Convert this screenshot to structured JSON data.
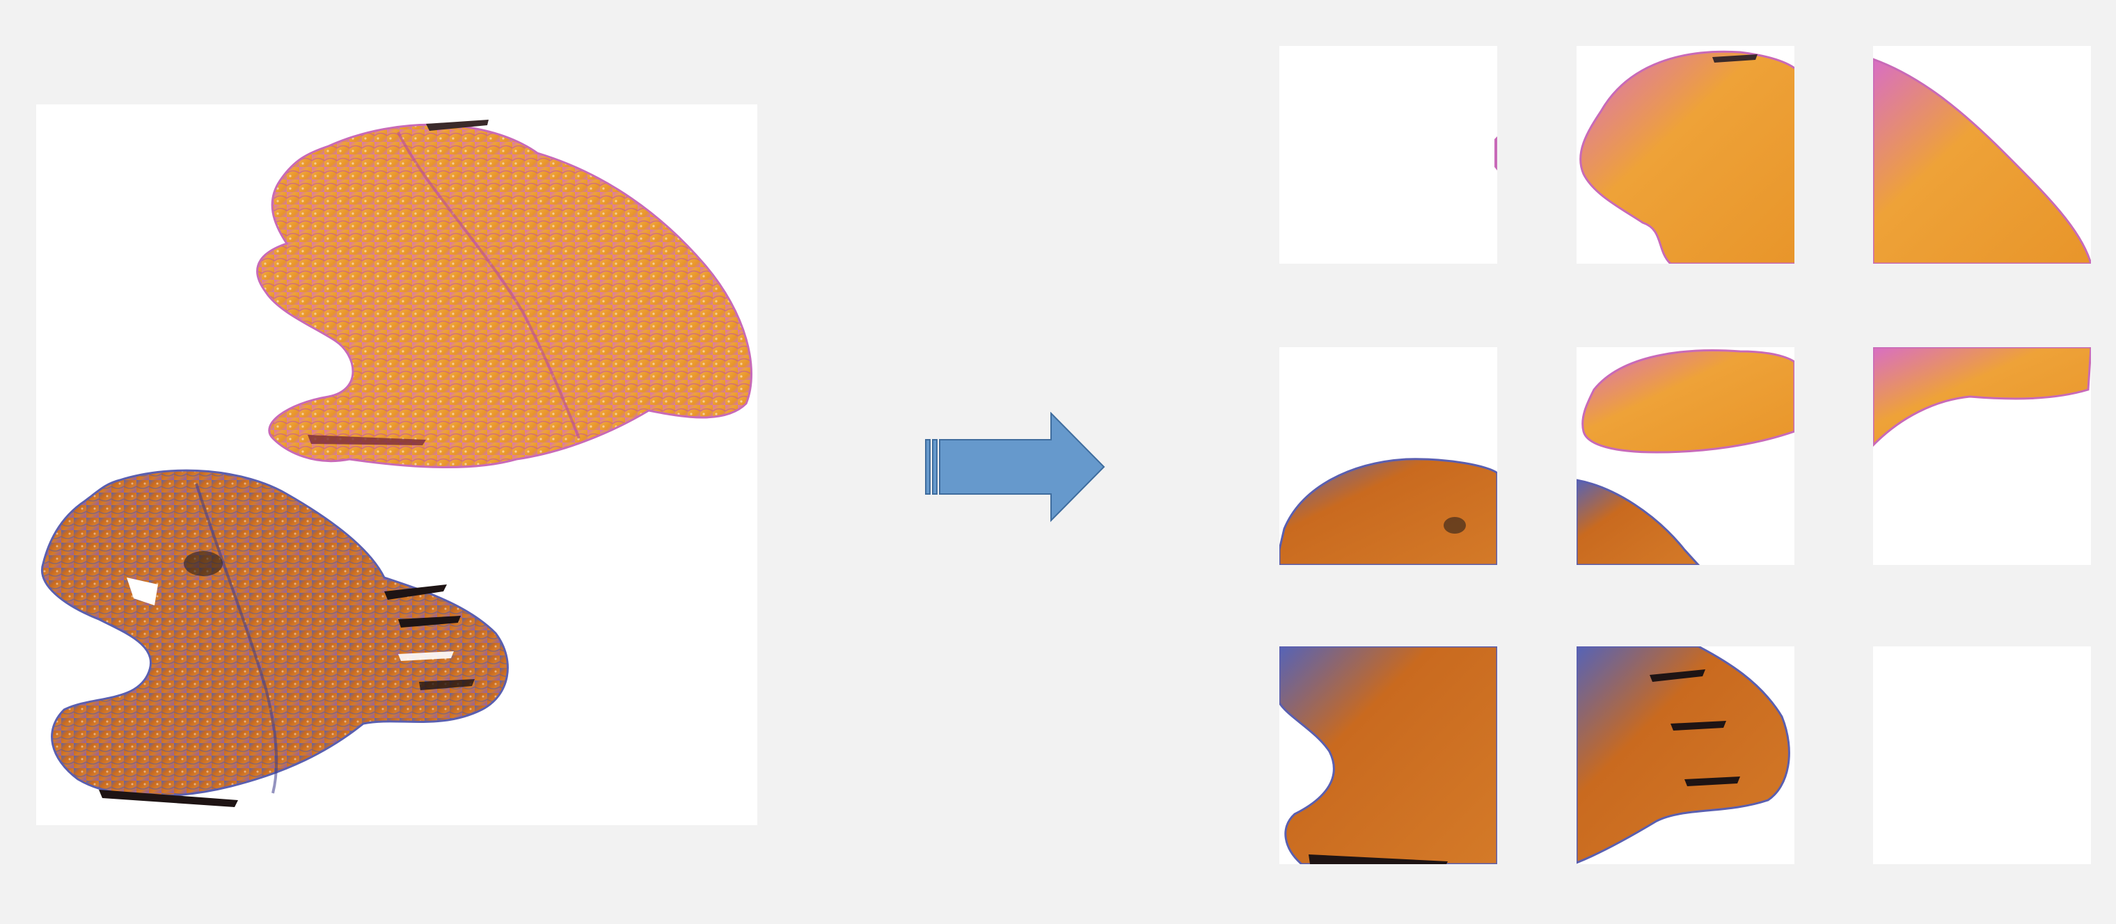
{
  "figure": {
    "source_image": {
      "icon": "tissue-section-image",
      "sections": [
        "upper-section-pink-orange",
        "lower-section-orange-blue"
      ]
    },
    "transform_arrow": {
      "icon": "right-arrow-icon",
      "color": "#6699cc",
      "stroke": "#3f6d9e"
    },
    "tiles": {
      "rows": 3,
      "cols": 3,
      "labels": []
    },
    "colors": {
      "background": "#f2f2f2",
      "tile_background": "#ffffff",
      "stain_orange": "#e8952a",
      "stain_pink": "#c65ab5",
      "stain_blue": "#5563b8",
      "stain_dark_orange": "#c96a1f"
    }
  }
}
